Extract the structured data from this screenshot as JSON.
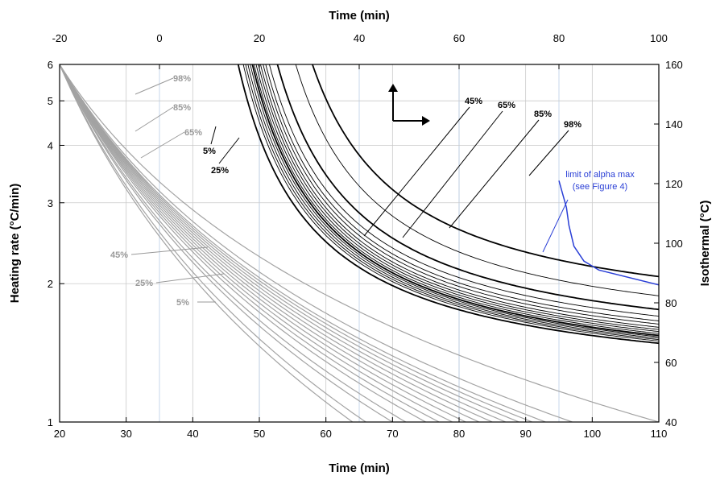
{
  "chart_data": {
    "type": "line",
    "xlabel": "Time (min)",
    "x2label": "Time (min)",
    "ylabel": "Heating rate (°C/min)",
    "y2label": "Isothermal (°C)",
    "xlim": [
      20,
      110
    ],
    "x2lim": [
      -20,
      100
    ],
    "ylim": [
      1,
      6
    ],
    "y2lim": [
      40,
      160
    ],
    "yscale": "log",
    "grid": true,
    "x_ticks": [
      "20",
      "30",
      "40",
      "50",
      "60",
      "70",
      "80",
      "90",
      "100",
      "110"
    ],
    "x2_ticks": [
      "-20",
      "0",
      "20",
      "40",
      "60",
      "80",
      "100"
    ],
    "y_ticks": [
      "1",
      "2",
      "3",
      "4",
      "5",
      "6"
    ],
    "y2_ticks": [
      "40",
      "60",
      "80",
      "100",
      "120",
      "140",
      "160"
    ],
    "gray_labels": [
      "98%",
      "85%",
      "65%",
      "45%",
      "25%",
      "5%"
    ],
    "black_labels_right": [
      "45%",
      "65%",
      "85%",
      "98%"
    ],
    "black_labels_left": [
      "5%",
      "25%"
    ],
    "annotation": {
      "line1": "limit of alpha max",
      "line2": "(see Figure 4)",
      "color": "#2a3fd6"
    },
    "isothermal_series": [
      {
        "label": "5%",
        "a": 0.79,
        "b": 9.8
      },
      {
        "label": "",
        "a": 1.73,
        "b": 10.4
      },
      {
        "label": "",
        "a": 2.14,
        "b": 10.8
      },
      {
        "label": "",
        "a": 2.55,
        "b": 11.2
      },
      {
        "label": "",
        "a": 2.96,
        "b": 11.6
      },
      {
        "label": "25%",
        "a": 3.33,
        "b": 12.0
      },
      {
        "label": "",
        "a": 3.57,
        "b": 12.6
      },
      {
        "label": "",
        "a": 3.9,
        "b": 13.2
      },
      {
        "label": "",
        "a": 4.26,
        "b": 13.8
      },
      {
        "label": "45%",
        "a": 4.59,
        "b": 14.5
      },
      {
        "label": "",
        "a": 4.96,
        "b": 15.5
      },
      {
        "label": "65%",
        "a": 5.33,
        "b": 16.5
      },
      {
        "label": "",
        "a": 5.83,
        "b": 18.0
      },
      {
        "label": "85%",
        "a": 7.12,
        "b": 20.0
      },
      {
        "label": "",
        "a": 10.1,
        "b": 24.0
      },
      {
        "label": "98%",
        "a": 12.3,
        "b": 30.0
      }
    ],
    "isothermal_bold": [
      "5%",
      "25%",
      "85%",
      "98%"
    ],
    "heating_series": [
      {
        "label": "5%",
        "b": 110,
        "g": 2.0
      },
      {
        "label": "",
        "b": 97,
        "g": 2.0
      },
      {
        "label": "",
        "b": 93,
        "g": 2.0
      },
      {
        "label": "",
        "b": 91,
        "g": 2.0
      },
      {
        "label": "25%",
        "b": 89,
        "g": 2.0
      },
      {
        "label": "",
        "b": 87,
        "g": 2.0
      },
      {
        "label": "",
        "b": 85,
        "g": 2.0
      },
      {
        "label": "",
        "b": 83,
        "g": 2.0
      },
      {
        "label": "45%",
        "b": 81,
        "g": 2.0
      },
      {
        "label": "",
        "b": 79,
        "g": 2.0
      },
      {
        "label": "",
        "b": 77,
        "g": 2.0
      },
      {
        "label": "65%",
        "b": 75,
        "g": 2.0
      },
      {
        "label": "",
        "b": 72,
        "g": 2.0
      },
      {
        "label": "85%",
        "b": 70,
        "g": 2.0
      },
      {
        "label": "",
        "b": 66,
        "g": 2.0
      },
      {
        "label": "98%",
        "b": 64,
        "g": 2.0
      }
    ],
    "alpha_max_limit": {
      "x2": [
        80,
        81.5,
        82,
        83,
        85,
        86,
        88,
        100
      ],
      "y2": [
        121,
        112,
        106,
        99,
        94,
        93,
        91,
        86
      ]
    }
  }
}
